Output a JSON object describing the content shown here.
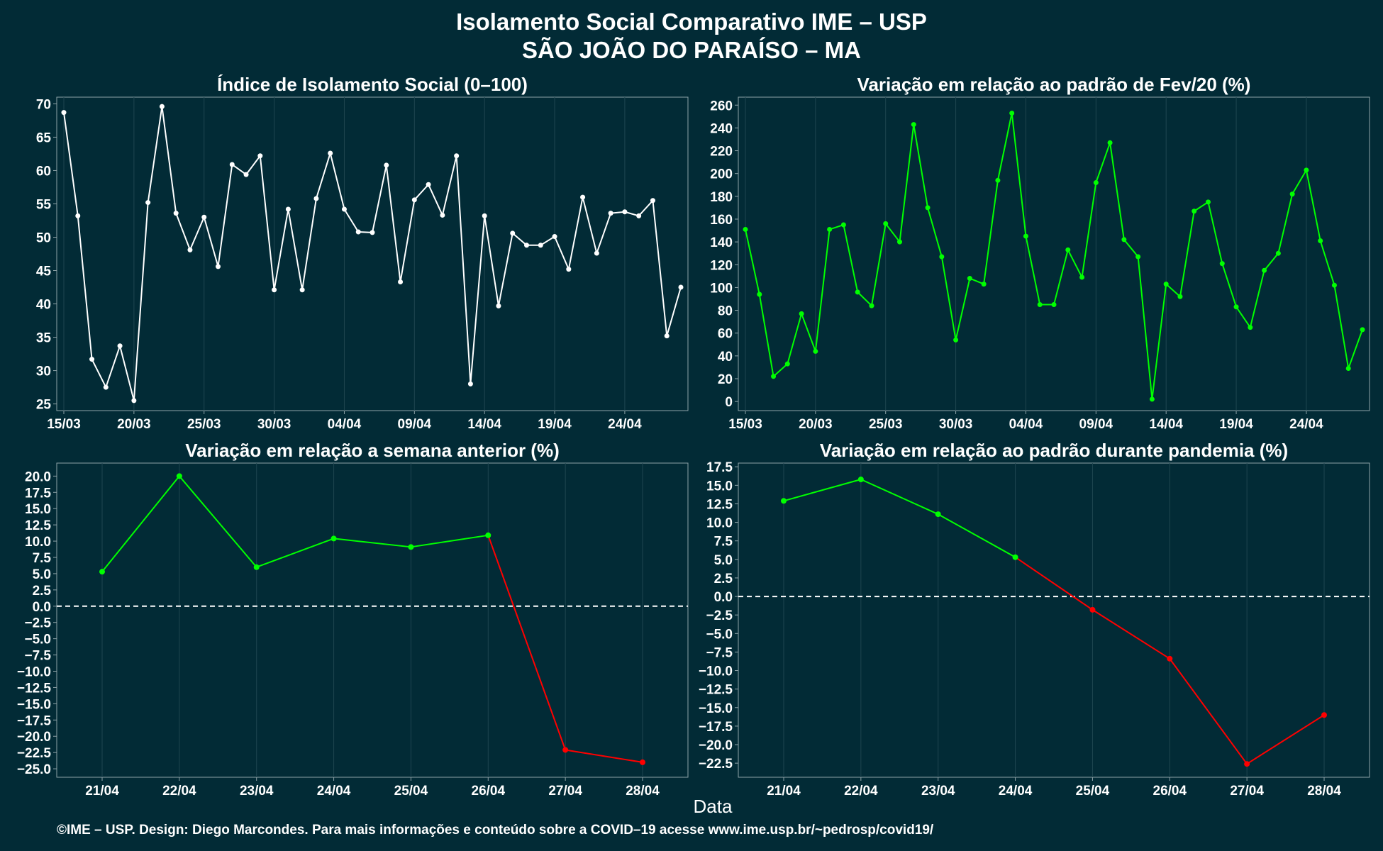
{
  "header": {
    "title": "Isolamento Social Comparativo IME – USP",
    "subtitle": "SÃO JOÃO DO PARAÍSO – MA"
  },
  "xlabel": "Data",
  "footer": "©IME – USP. Design: Diego Marcondes. Para mais informações e conteúdo sobre a COVID–19 acesse www.ime.usp.br/~pedrosp/covid19/",
  "colors": {
    "background": "#022b36",
    "panel": "#022b36",
    "grid": "#1f4650",
    "white_series": "#ffffff",
    "positive": "#00ff00",
    "negative": "#ff0000",
    "baseline": "#ffffff"
  },
  "chart_data": [
    {
      "type": "line",
      "title": "Índice de Isolamento Social (0–100)",
      "x_ticks": [
        "15/03",
        "20/03",
        "25/03",
        "30/03",
        "04/04",
        "09/04",
        "14/04",
        "19/04",
        "24/04"
      ],
      "x": [
        "15/03",
        "16/03",
        "17/03",
        "18/03",
        "19/03",
        "20/03",
        "21/03",
        "22/03",
        "23/03",
        "24/03",
        "25/03",
        "26/03",
        "27/03",
        "28/03",
        "29/03",
        "30/03",
        "31/03",
        "01/04",
        "02/04",
        "03/04",
        "04/04",
        "05/04",
        "06/04",
        "07/04",
        "08/04",
        "09/04",
        "10/04",
        "11/04",
        "12/04",
        "13/04",
        "14/04",
        "15/04",
        "16/04",
        "17/04",
        "18/04",
        "19/04",
        "20/04",
        "21/04",
        "22/04",
        "23/04",
        "24/04",
        "25/04",
        "26/04",
        "27/04",
        "28/04"
      ],
      "values": [
        68.7,
        53.2,
        31.7,
        27.5,
        33.7,
        25.5,
        55.2,
        69.6,
        53.6,
        48.1,
        53.0,
        45.6,
        60.9,
        59.4,
        62.2,
        42.1,
        54.2,
        42.1,
        55.8,
        62.6,
        54.2,
        50.8,
        50.7,
        60.8,
        43.3,
        55.6,
        57.9,
        53.3,
        62.2,
        28.0,
        53.2,
        39.7,
        50.6,
        48.8,
        48.8,
        50.1,
        45.2,
        56.0,
        47.6,
        53.6,
        53.8,
        53.2,
        55.5,
        35.2,
        42.5
      ],
      "ylim": [
        24,
        71
      ],
      "y_ticks": [
        25,
        30,
        35,
        40,
        45,
        50,
        55,
        60,
        65,
        70
      ],
      "color": "#ffffff",
      "grid": true
    },
    {
      "type": "line",
      "title": "Variação em relação ao padrão de Fev/20 (%)",
      "x_ticks": [
        "15/03",
        "20/03",
        "25/03",
        "30/03",
        "04/04",
        "09/04",
        "14/04",
        "19/04",
        "24/04"
      ],
      "x": [
        "15/03",
        "16/03",
        "17/03",
        "18/03",
        "19/03",
        "20/03",
        "21/03",
        "22/03",
        "23/03",
        "24/03",
        "25/03",
        "26/03",
        "27/03",
        "28/03",
        "29/03",
        "30/03",
        "31/03",
        "01/04",
        "02/04",
        "03/04",
        "04/04",
        "05/04",
        "06/04",
        "07/04",
        "08/04",
        "09/04",
        "10/04",
        "11/04",
        "12/04",
        "13/04",
        "14/04",
        "15/04",
        "16/04",
        "17/04",
        "18/04",
        "19/04",
        "20/04",
        "21/04",
        "22/04",
        "23/04",
        "24/04",
        "25/04",
        "26/04",
        "27/04",
        "28/04"
      ],
      "values": [
        151,
        94,
        22,
        33,
        77,
        44,
        151,
        155,
        96,
        84,
        156,
        140,
        243,
        170,
        127,
        54,
        108,
        103,
        194,
        253,
        145,
        85,
        85,
        133,
        109,
        192,
        227,
        142,
        127,
        2,
        103,
        92,
        167,
        175,
        121,
        83,
        65,
        115,
        130,
        182,
        203,
        141,
        102,
        29,
        63
      ],
      "ylim": [
        -8,
        267
      ],
      "y_ticks": [
        0,
        20,
        40,
        60,
        80,
        100,
        120,
        140,
        160,
        180,
        200,
        220,
        240,
        260
      ],
      "color": "#00ff00",
      "grid": true
    },
    {
      "type": "line",
      "title": "Variação em relação a semana anterior (%)",
      "categories": [
        "21/04",
        "22/04",
        "23/04",
        "24/04",
        "25/04",
        "26/04",
        "27/04",
        "28/04"
      ],
      "values": [
        5.3,
        20.0,
        6.0,
        10.4,
        9.1,
        10.9,
        -22.1,
        -24.0
      ],
      "ylim": [
        -26.3,
        22.0
      ],
      "y_ticks": [
        20.0,
        17.5,
        15.0,
        12.5,
        10.0,
        7.5,
        5.0,
        2.5,
        0.0,
        -2.5,
        -5.0,
        -7.5,
        -10.0,
        -12.5,
        -15.0,
        -17.5,
        -20.0,
        -22.5,
        -25.0
      ],
      "baseline": 0,
      "positive_color": "#00ff00",
      "negative_color": "#ff0000",
      "grid": true
    },
    {
      "type": "line",
      "title": "Variação em relação ao padrão durante pandemia (%)",
      "categories": [
        "21/04",
        "22/04",
        "23/04",
        "24/04",
        "25/04",
        "26/04",
        "27/04",
        "28/04"
      ],
      "values": [
        12.9,
        15.8,
        11.1,
        5.3,
        -1.8,
        -8.4,
        -22.6,
        -16.0
      ],
      "ylim": [
        -24.4,
        18.0
      ],
      "y_ticks": [
        17.5,
        15.0,
        12.5,
        10.0,
        7.5,
        5.0,
        2.5,
        0.0,
        -2.5,
        -5.0,
        -7.5,
        -10.0,
        -12.5,
        -15.0,
        -17.5,
        -20.0,
        -22.5
      ],
      "baseline": 0,
      "positive_color": "#00ff00",
      "negative_color": "#ff0000",
      "grid": true
    }
  ]
}
